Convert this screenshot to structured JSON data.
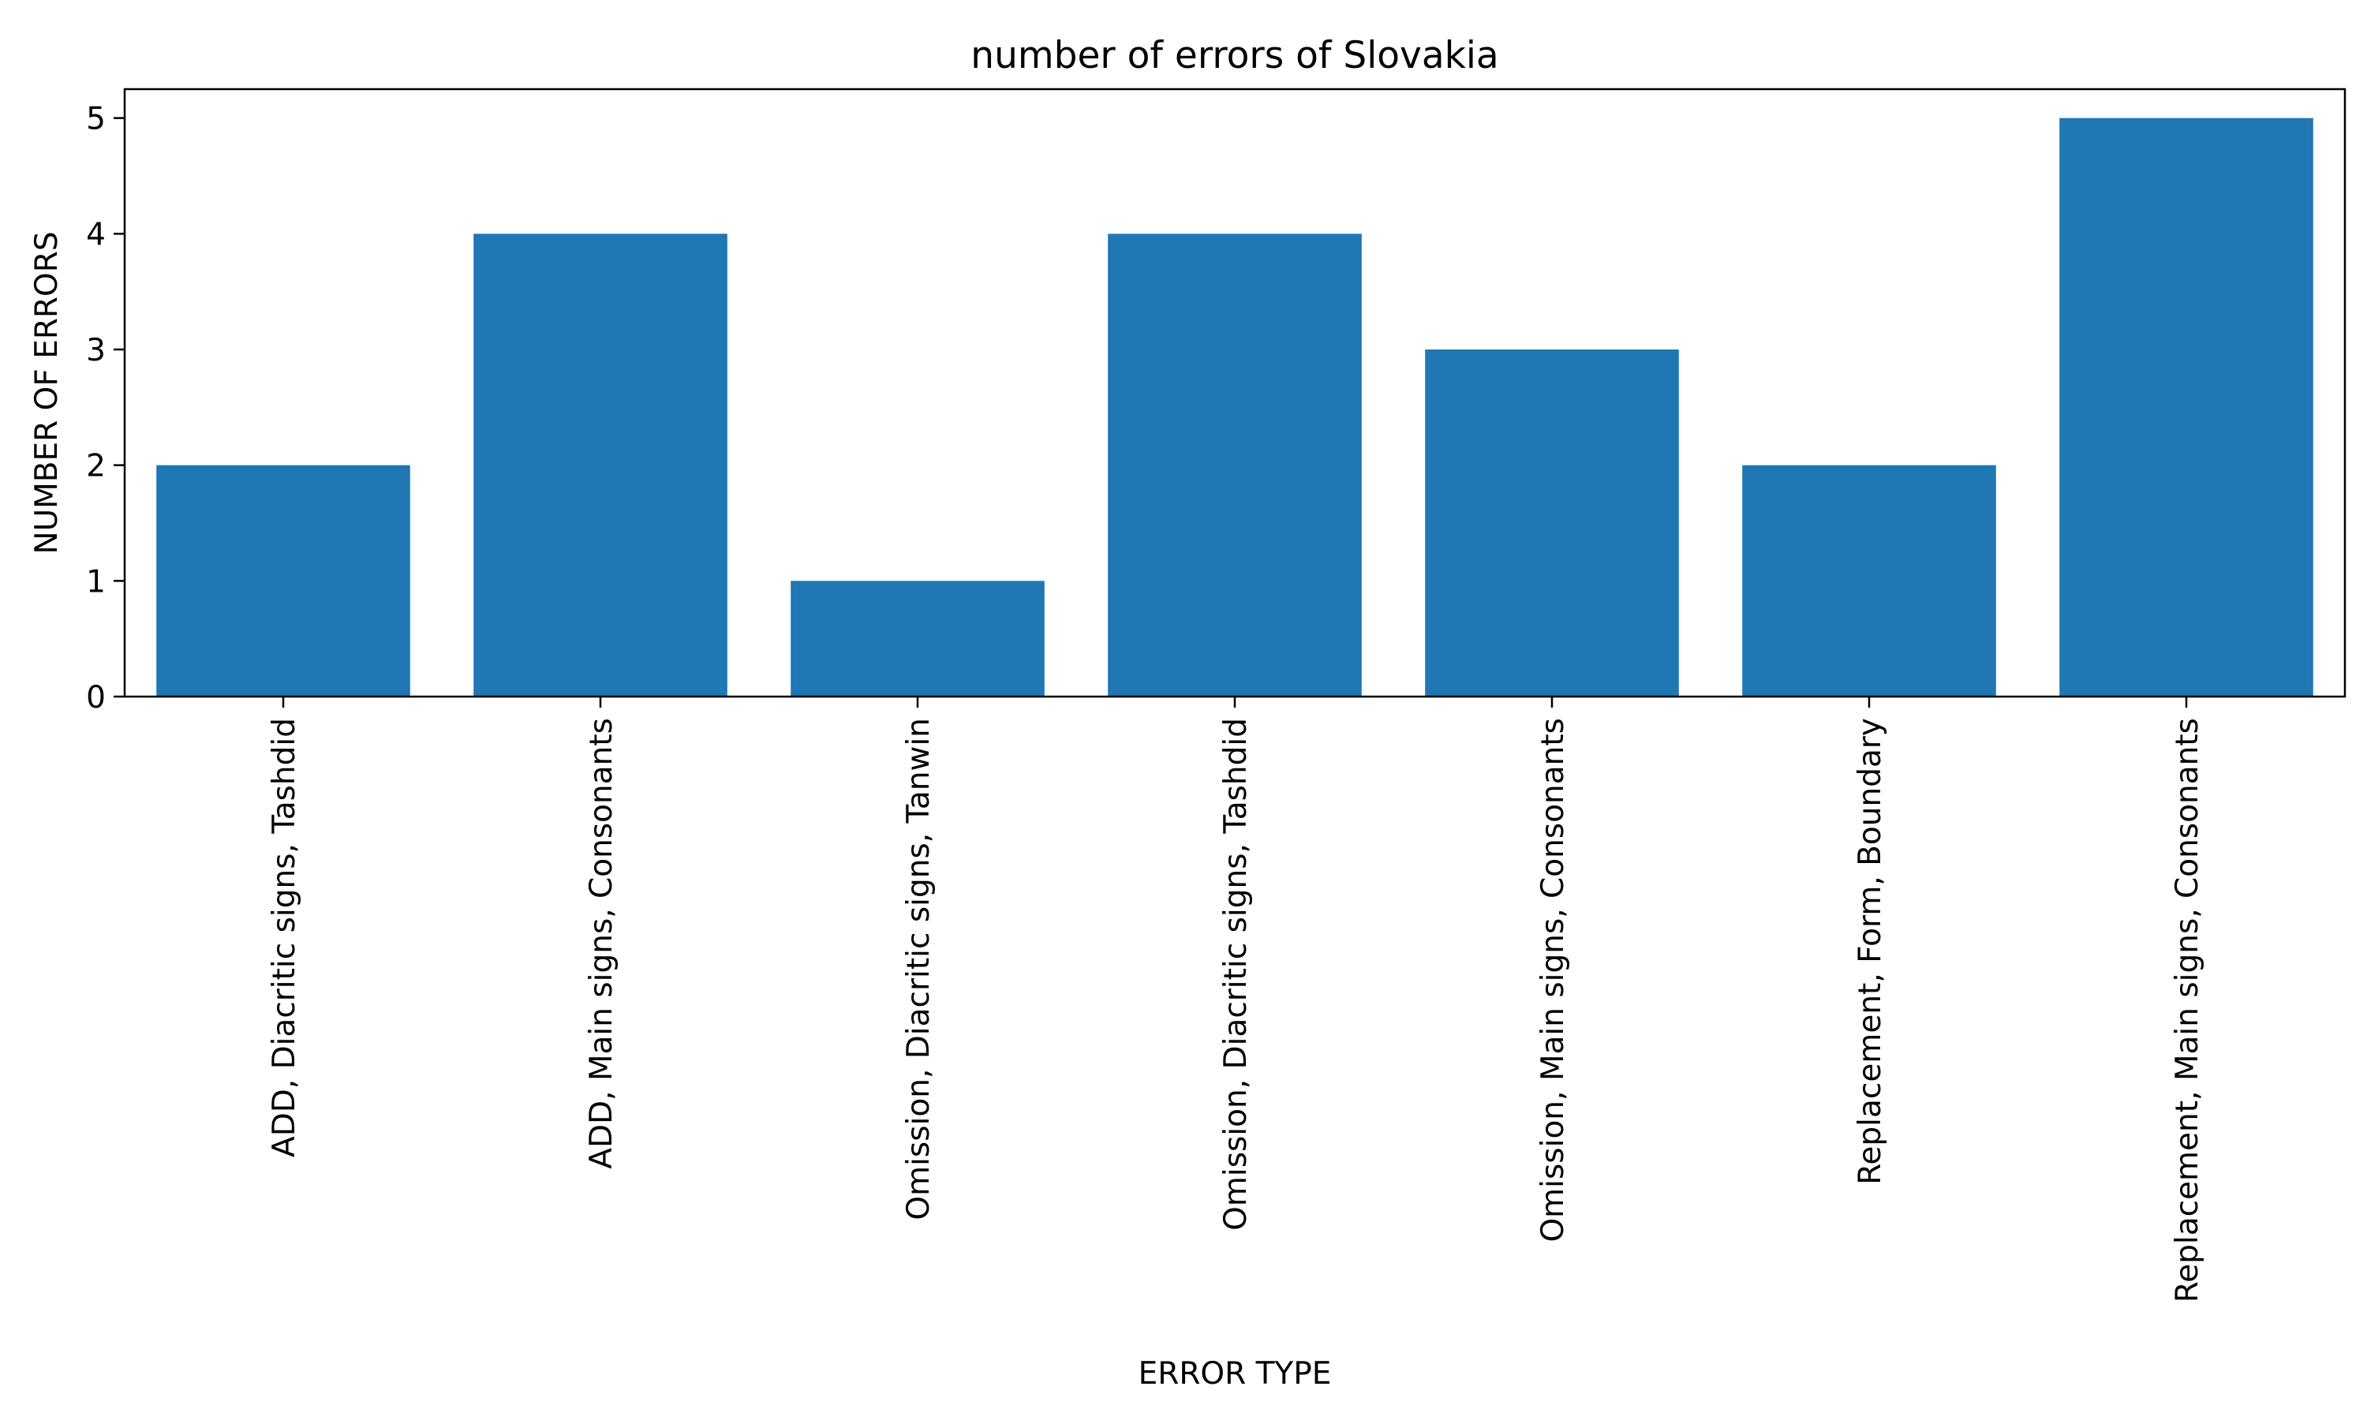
{
  "chart_data": {
    "type": "bar",
    "title": "number of errors of Slovakia",
    "xlabel": "ERROR TYPE",
    "ylabel": "NUMBER OF ERRORS",
    "categories": [
      "ADD, Diacritic signs, Tashdid",
      "ADD, Main signs, Consonants",
      "Omission, Diacritic signs, Tanwin",
      "Omission, Diacritic signs, Tashdid",
      "Omission, Main signs, Consonants",
      "Replacement, Form, Boundary",
      "Replacement, Main signs, Consonants"
    ],
    "values": [
      2,
      4,
      1,
      4,
      3,
      2,
      5
    ],
    "ylim": [
      0,
      5.25
    ],
    "yticks": [
      0,
      1,
      2,
      3,
      4,
      5
    ],
    "grid": false,
    "legend": "none",
    "bar_color": "#1f77b4",
    "axis_color": "#000000"
  }
}
